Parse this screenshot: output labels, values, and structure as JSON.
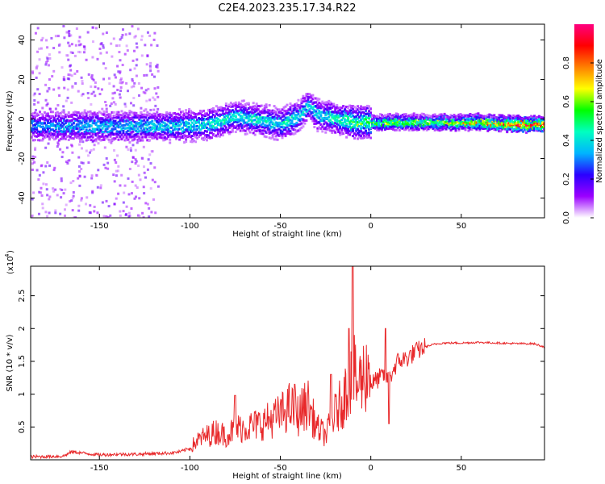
{
  "title": "C2E4.2023.235.17.34.R22",
  "chart_data": [
    {
      "type": "heatmap",
      "xlabel": "Height of straight line (km)",
      "ylabel": "Frequency (Hz)",
      "xlim": [
        -188,
        96
      ],
      "ylim": [
        -50,
        48
      ],
      "xticks": [
        -150,
        -100,
        -50,
        0,
        50
      ],
      "yticks": [
        -40,
        -20,
        0,
        20,
        40
      ],
      "colorbar": {
        "label": "Normalized spectral amplitude",
        "range": [
          0,
          1
        ],
        "ticks": [
          0.0,
          0.2,
          0.4,
          0.6,
          0.8
        ],
        "colors": [
          "#ffffff",
          "#9b00ff",
          "#2a00ff",
          "#00b4ff",
          "#00ffc0",
          "#00ff00",
          "#ffff00",
          "#ff8000",
          "#ff0000",
          "#ff0080"
        ]
      },
      "ridge": {
        "x": [
          -188,
          -170,
          -150,
          -130,
          -110,
          -90,
          -75,
          -60,
          -50,
          -40,
          -35,
          -30,
          -25,
          -20,
          -15,
          -10,
          0,
          20,
          40,
          60,
          80,
          96
        ],
        "freq_hz": [
          -3,
          -3,
          -3,
          -3,
          -3,
          -2,
          2,
          0,
          -2,
          2,
          8,
          3,
          2,
          1,
          0,
          -1,
          -1,
          -1,
          -1,
          -1,
          -2,
          -2
        ],
        "amplitude": [
          0.25,
          0.28,
          0.3,
          0.32,
          0.33,
          0.35,
          0.36,
          0.37,
          0.38,
          0.35,
          0.32,
          0.33,
          0.36,
          0.4,
          0.45,
          0.5,
          0.55,
          0.55,
          0.6,
          0.7,
          0.85,
          0.9
        ]
      }
    },
    {
      "type": "line",
      "xlabel": "Height of straight line (km)",
      "ylabel": "SNR (10 * v/v)",
      "yscale_label": "(x10",
      "yscale_exponent": "4",
      "xlim": [
        -188,
        96
      ],
      "ylim": [
        0,
        2.95
      ],
      "xticks": [
        -150,
        -100,
        -50,
        0,
        50
      ],
      "yticks": [
        0.5,
        1.0,
        1.5,
        2.0,
        2.5
      ],
      "ytick_labels": [
        "0.5",
        "1",
        "1.5",
        "2",
        "2.5"
      ],
      "color": "#e8282a",
      "series": [
        {
          "x": [
            -188,
            -170,
            -165,
            -160,
            -150,
            -140,
            -130,
            -120,
            -110,
            -105,
            -100,
            -95,
            -90,
            -85,
            -80,
            -75,
            -70,
            -65,
            -60,
            -55,
            -50,
            -45,
            -40,
            -35,
            -30,
            -25,
            -20,
            -15,
            -12,
            -10,
            -8,
            -5,
            0,
            5,
            8,
            10,
            12,
            15,
            20,
            25,
            30,
            35,
            40,
            50,
            60,
            70,
            80,
            90,
            96
          ],
          "y": [
            0.02,
            0.03,
            0.1,
            0.08,
            0.05,
            0.06,
            0.06,
            0.07,
            0.08,
            0.1,
            0.15,
            0.25,
            0.3,
            0.35,
            0.3,
            0.38,
            0.4,
            0.42,
            0.45,
            0.5,
            0.55,
            0.65,
            0.55,
            0.7,
            0.4,
            0.3,
            0.55,
            0.75,
            1.0,
            1.15,
            0.9,
            1.0,
            1.15,
            1.25,
            1.3,
            1.2,
            1.35,
            1.5,
            1.55,
            1.65,
            1.72,
            1.76,
            1.78,
            1.78,
            1.79,
            1.78,
            1.77,
            1.77,
            1.72
          ]
        }
      ],
      "annotations": [
        {
          "x": -10,
          "y": 2.95
        },
        {
          "x": -12,
          "y": 2.0
        },
        {
          "x": 8,
          "y": 2.0
        },
        {
          "x": -75,
          "y": 0.98
        },
        {
          "x": -42,
          "y": 1.15
        },
        {
          "x": -22,
          "y": 1.3
        },
        {
          "x": 10,
          "y": 0.55
        }
      ]
    }
  ]
}
